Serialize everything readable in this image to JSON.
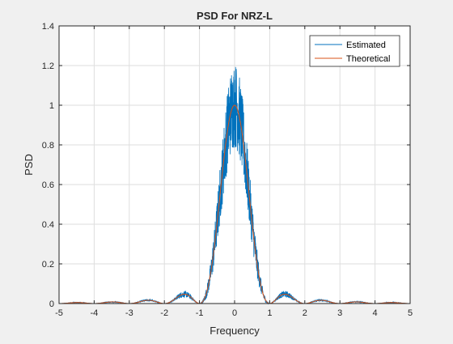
{
  "chart_data": {
    "type": "line",
    "title": "PSD For NRZ-L",
    "xlabel": "Frequency",
    "ylabel": "PSD",
    "xlim": [
      -5,
      5
    ],
    "ylim": [
      0,
      1.4
    ],
    "xticks": [
      -5,
      -4,
      -3,
      -2,
      -1,
      0,
      1,
      2,
      3,
      4,
      5
    ],
    "xtick_labels": [
      "-5",
      "-4",
      "-3",
      "-2",
      "-1",
      "0",
      "1",
      "2",
      "3",
      "4",
      "5"
    ],
    "yticks": [
      0,
      0.2,
      0.4,
      0.6,
      0.8,
      1,
      1.2,
      1.4
    ],
    "ytick_labels": [
      "0",
      "0.2",
      "0.4",
      "0.6",
      "0.8",
      "1",
      "1.2",
      "1.4"
    ],
    "grid": true,
    "legend_position": "top-right",
    "series": [
      {
        "name": "Estimated",
        "color": "#0072BD",
        "description": "noisy estimate fluctuating around the theoretical sinc^2 curve; peaks near 1.24 at f=0",
        "x": [
          -5,
          -4.5,
          -4,
          -3.5,
          -3,
          -2.5,
          -2,
          -1.5,
          -1.2,
          -1,
          -0.8,
          -0.6,
          -0.4,
          -0.2,
          0,
          0.2,
          0.4,
          0.6,
          0.8,
          1,
          1.2,
          1.5,
          2,
          2.5,
          3,
          3.5,
          4,
          4.5,
          5
        ],
        "y": [
          0,
          0.008,
          0,
          0.009,
          0,
          0.016,
          0,
          0.06,
          0.03,
          0,
          0.07,
          0.33,
          0.62,
          0.98,
          1.24,
          0.98,
          0.62,
          0.33,
          0.07,
          0,
          0.03,
          0.055,
          0,
          0.018,
          0,
          0.009,
          0,
          0.008,
          0
        ]
      },
      {
        "name": "Theoretical",
        "color": "#D95319",
        "function": "sinc^2(f)",
        "x": [
          -5,
          -4.5,
          -4,
          -3.5,
          -3,
          -2.5,
          -2,
          -1.5,
          -1,
          -0.5,
          0,
          0.5,
          1,
          1.5,
          2,
          2.5,
          3,
          3.5,
          4,
          4.5,
          5
        ],
        "y": [
          0,
          0.005,
          0,
          0.0083,
          0,
          0.0162,
          0,
          0.045,
          0,
          0.405,
          1,
          0.405,
          0,
          0.045,
          0,
          0.0162,
          0,
          0.0083,
          0,
          0.005,
          0
        ]
      }
    ]
  }
}
